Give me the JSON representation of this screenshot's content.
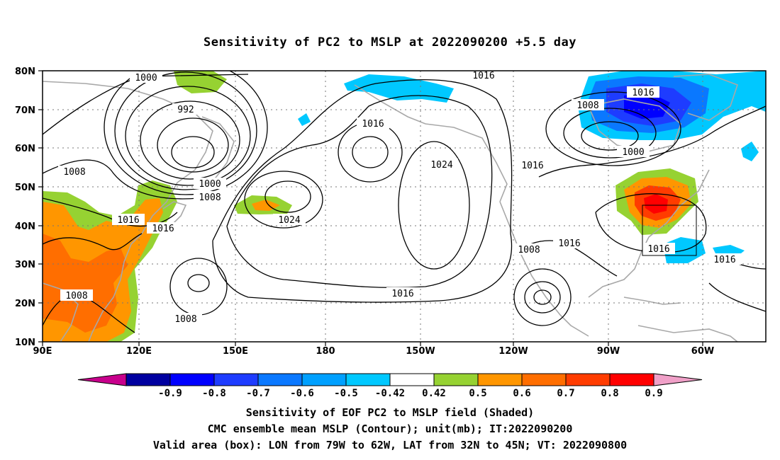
{
  "title": "Sensitivity of PC2 to MSLP at 2022090200 +5.5 day",
  "map": {
    "lat_labels": [
      "80N",
      "70N",
      "60N",
      "50N",
      "40N",
      "30N",
      "20N",
      "10N"
    ],
    "lon_labels": [
      "90E",
      "120E",
      "150E",
      "180",
      "150W",
      "120W",
      "90W",
      "60W"
    ],
    "contour_labels": [
      "1000",
      "992",
      "1000",
      "1008",
      "1008",
      "1016",
      "1016",
      "1008",
      "1024",
      "1016",
      "1016",
      "1024",
      "1016",
      "1016",
      "1008",
      "1000",
      "1016",
      "1008",
      "1016",
      "1016",
      "1008",
      "1016"
    ],
    "valid_box": {
      "lon": [
        -79,
        -62
      ],
      "lat": [
        32,
        45
      ]
    }
  },
  "colorbar": {
    "tick_labels": [
      "-0.9",
      "-0.8",
      "-0.7",
      "-0.6",
      "-0.5",
      "-0.42",
      "0.42",
      "0.5",
      "0.6",
      "0.7",
      "0.8",
      "0.9"
    ],
    "colors": [
      "#c8008c",
      "#0000a0",
      "#0000ff",
      "#1e3cff",
      "#0a78ff",
      "#00a0ff",
      "#00c8ff",
      "#ffffff",
      "#96d232",
      "#ff9600",
      "#ff6e00",
      "#ff3c00",
      "#ff0000",
      "#f0a0c8"
    ]
  },
  "captions": {
    "line1": "Sensitivity of EOF PC2 to MSLP field (Shaded)",
    "line2": "CMC ensemble mean MSLP (Contour); unit(mb); IT:2022090200",
    "line3": "Valid area (box): LON from 79W to 62W, LAT from 32N to 45N; VT: 2022090800"
  }
}
